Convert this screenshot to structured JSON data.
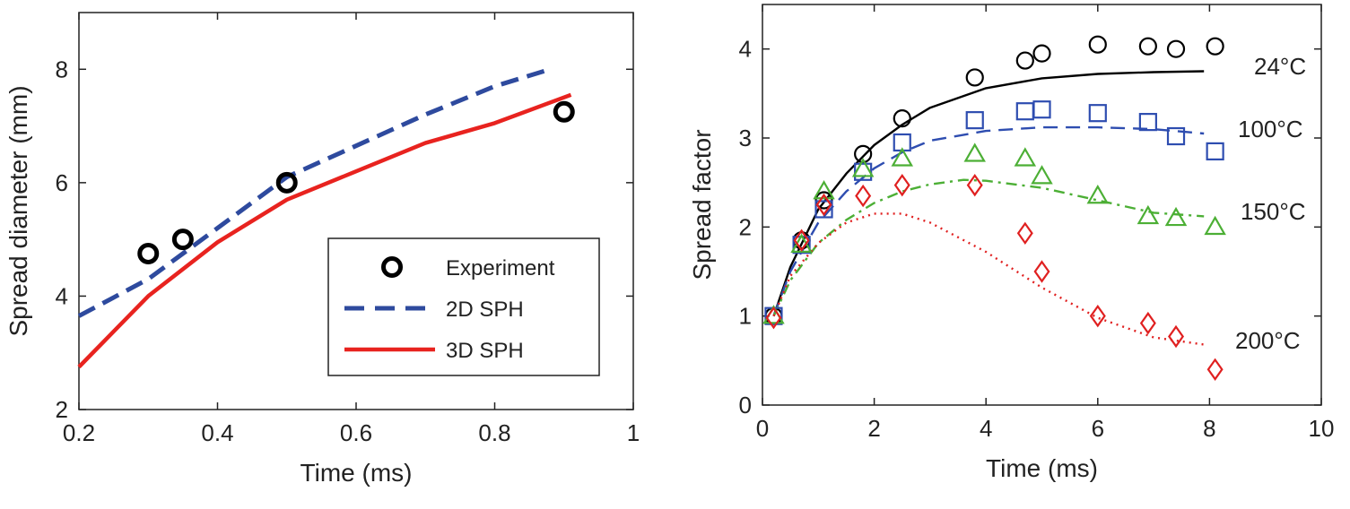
{
  "chart_data": [
    {
      "type": "line",
      "xlabel": "Time (ms)",
      "ylabel": "Spread diameter (mm)",
      "xlim": [
        0.2,
        1.0
      ],
      "ylim": [
        2,
        9
      ],
      "xticks": [
        0.2,
        0.4,
        0.6,
        0.8,
        1.0
      ],
      "xtick_labels": [
        "0.2",
        "0.4",
        "0.6",
        "0.8",
        "1"
      ],
      "yticks": [
        2,
        4,
        6,
        8
      ],
      "ytick_labels": [
        "2",
        "4",
        "6",
        "8"
      ],
      "legend_position": "bottom-right",
      "series": [
        {
          "name": "Experiment",
          "kind": "marker",
          "marker": "circle",
          "color": "#000000",
          "x": [
            0.3,
            0.35,
            0.5,
            0.9
          ],
          "y": [
            4.75,
            5.0,
            6.0,
            7.25
          ]
        },
        {
          "name": "2D SPH",
          "kind": "line",
          "dash": "dashed",
          "color": "#2e4a9e",
          "x": [
            0.2,
            0.3,
            0.4,
            0.5,
            0.6,
            0.7,
            0.8,
            0.88
          ],
          "y": [
            3.65,
            4.3,
            5.2,
            6.1,
            6.65,
            7.2,
            7.7,
            8.0
          ]
        },
        {
          "name": "3D SPH",
          "kind": "line",
          "dash": "solid",
          "color": "#e8231f",
          "x": [
            0.2,
            0.3,
            0.4,
            0.5,
            0.6,
            0.7,
            0.8,
            0.91
          ],
          "y": [
            2.75,
            4.0,
            4.95,
            5.7,
            6.2,
            6.7,
            7.05,
            7.55
          ]
        }
      ]
    },
    {
      "type": "scatter",
      "xlabel": "Time (ms)",
      "ylabel": "Spread factor",
      "xlim": [
        0,
        10
      ],
      "ylim": [
        0,
        4.5
      ],
      "xticks": [
        0,
        2,
        4,
        6,
        8,
        10
      ],
      "xtick_labels": [
        "0",
        "2",
        "4",
        "6",
        "8",
        "10"
      ],
      "yticks": [
        0,
        1,
        2,
        3,
        4
      ],
      "ytick_labels": [
        "0",
        "1",
        "2",
        "3",
        "4"
      ],
      "series": [
        {
          "name": "24°C",
          "marker": "circle",
          "color": "#000000",
          "line_dash": "solid",
          "points_x": [
            0.2,
            0.7,
            1.1,
            1.8,
            2.5,
            3.8,
            4.7,
            5.0,
            6.0,
            6.9,
            7.4,
            8.1
          ],
          "points_y": [
            1.0,
            1.85,
            2.3,
            2.82,
            3.22,
            3.68,
            3.87,
            3.95,
            4.05,
            4.03,
            4.0,
            4.03
          ],
          "line_x": [
            0.2,
            0.5,
            1.0,
            1.5,
            2.0,
            2.5,
            3.0,
            4.0,
            5.0,
            6.0,
            7.0,
            7.9
          ],
          "line_y": [
            1.0,
            1.55,
            2.2,
            2.6,
            2.92,
            3.15,
            3.34,
            3.56,
            3.67,
            3.72,
            3.74,
            3.75
          ]
        },
        {
          "name": "100°C",
          "marker": "square",
          "color": "#2e4db0",
          "line_dash": "dashed",
          "points_x": [
            0.2,
            0.7,
            1.1,
            1.8,
            2.5,
            3.8,
            4.7,
            5.0,
            6.0,
            6.9,
            7.4,
            8.1
          ],
          "points_y": [
            1.0,
            1.8,
            2.2,
            2.62,
            2.95,
            3.2,
            3.3,
            3.32,
            3.28,
            3.18,
            3.02,
            2.85
          ],
          "line_x": [
            0.2,
            0.5,
            1.0,
            1.5,
            2.0,
            2.5,
            3.0,
            4.0,
            5.0,
            6.0,
            7.0,
            7.9
          ],
          "line_y": [
            1.0,
            1.5,
            2.05,
            2.4,
            2.66,
            2.84,
            2.97,
            3.08,
            3.12,
            3.12,
            3.1,
            3.05
          ]
        },
        {
          "name": "150°C",
          "marker": "triangle",
          "color": "#4caf35",
          "line_dash": "dashdot",
          "points_x": [
            0.2,
            0.7,
            1.1,
            1.8,
            2.5,
            3.8,
            4.7,
            5.0,
            6.0,
            6.9,
            7.4,
            8.1
          ],
          "points_y": [
            1.0,
            1.8,
            2.4,
            2.65,
            2.77,
            2.82,
            2.77,
            2.57,
            2.35,
            2.12,
            2.1,
            2.0
          ],
          "line_x": [
            0.2,
            0.5,
            1.0,
            1.5,
            2.0,
            2.5,
            3.0,
            3.6,
            4.0,
            5.0,
            6.0,
            7.0,
            7.9
          ],
          "line_y": [
            1.0,
            1.4,
            1.82,
            2.08,
            2.27,
            2.4,
            2.48,
            2.53,
            2.52,
            2.44,
            2.3,
            2.16,
            2.12
          ]
        },
        {
          "name": "200°C",
          "marker": "diamond",
          "color": "#e02020",
          "line_dash": "dotted",
          "points_x": [
            0.2,
            0.7,
            1.1,
            1.8,
            2.5,
            3.8,
            4.7,
            5.0,
            6.0,
            6.9,
            7.4,
            8.1
          ],
          "points_y": [
            0.98,
            1.85,
            2.25,
            2.35,
            2.47,
            2.47,
            1.93,
            1.5,
            1.0,
            0.92,
            0.77,
            0.4
          ],
          "line_x": [
            0.2,
            0.5,
            1.0,
            1.5,
            2.0,
            2.5,
            3.0,
            4.0,
            5.0,
            6.0,
            7.0,
            7.9
          ],
          "line_y": [
            1.0,
            1.45,
            1.82,
            2.05,
            2.15,
            2.15,
            2.05,
            1.72,
            1.32,
            0.98,
            0.76,
            0.68
          ]
        }
      ]
    }
  ]
}
